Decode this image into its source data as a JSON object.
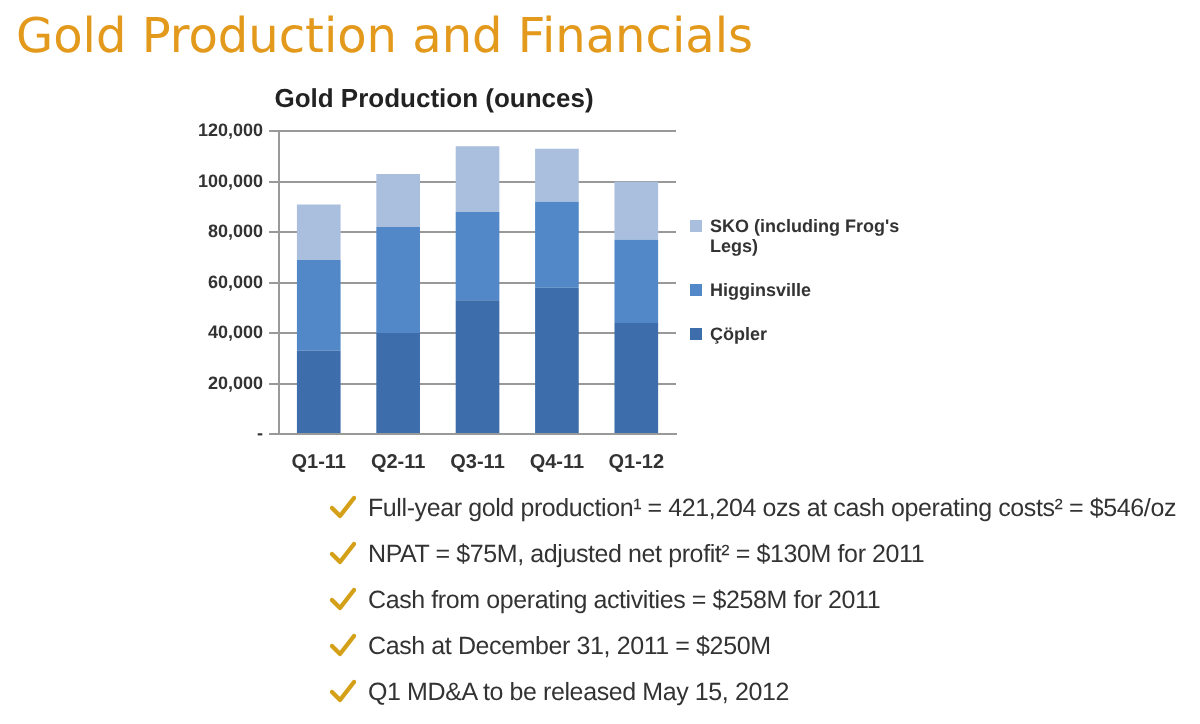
{
  "chart_data": {
    "type": "bar",
    "stacked": true,
    "title": "Gold Production (ounces)",
    "categories": [
      "Q1-11",
      "Q2-11",
      "Q3-11",
      "Q4-11",
      "Q1-12"
    ],
    "series": [
      {
        "name": "Çöpler",
        "color": "#3d6eab",
        "values": [
          33000,
          40000,
          53000,
          58000,
          44000
        ]
      },
      {
        "name": "Higginsville",
        "color": "#5288c8",
        "values": [
          36000,
          42000,
          35000,
          34000,
          33000
        ]
      },
      {
        "name": "SKO (including Frog's Legs)",
        "color": "#a9bfdd",
        "values": [
          22000,
          21000,
          26000,
          21000,
          23000
        ]
      }
    ],
    "ylim": [
      0,
      120000
    ],
    "yticks": [
      {
        "value": 0,
        "label": "-"
      },
      {
        "value": 20000,
        "label": "20,000"
      },
      {
        "value": 40000,
        "label": "40,000"
      },
      {
        "value": 60000,
        "label": "60,000"
      },
      {
        "value": 80000,
        "label": "80,000"
      },
      {
        "value": 100000,
        "label": "100,000"
      },
      {
        "value": 120000,
        "label": "120,000"
      }
    ],
    "grid": "y",
    "legend": "right",
    "annotations": [
      "Gold Production and Financials",
      "Full-year gold production¹ = 421,204 ozs at cash operating costs² = $546/oz",
      "NPAT = $75M, adjusted net profit² = $130M for 2011",
      "Cash from operating activities = $258M for 2011",
      "Cash at December 31, 2011 = $250M",
      "Q1 MD&A to be released May 15, 2012"
    ]
  }
}
